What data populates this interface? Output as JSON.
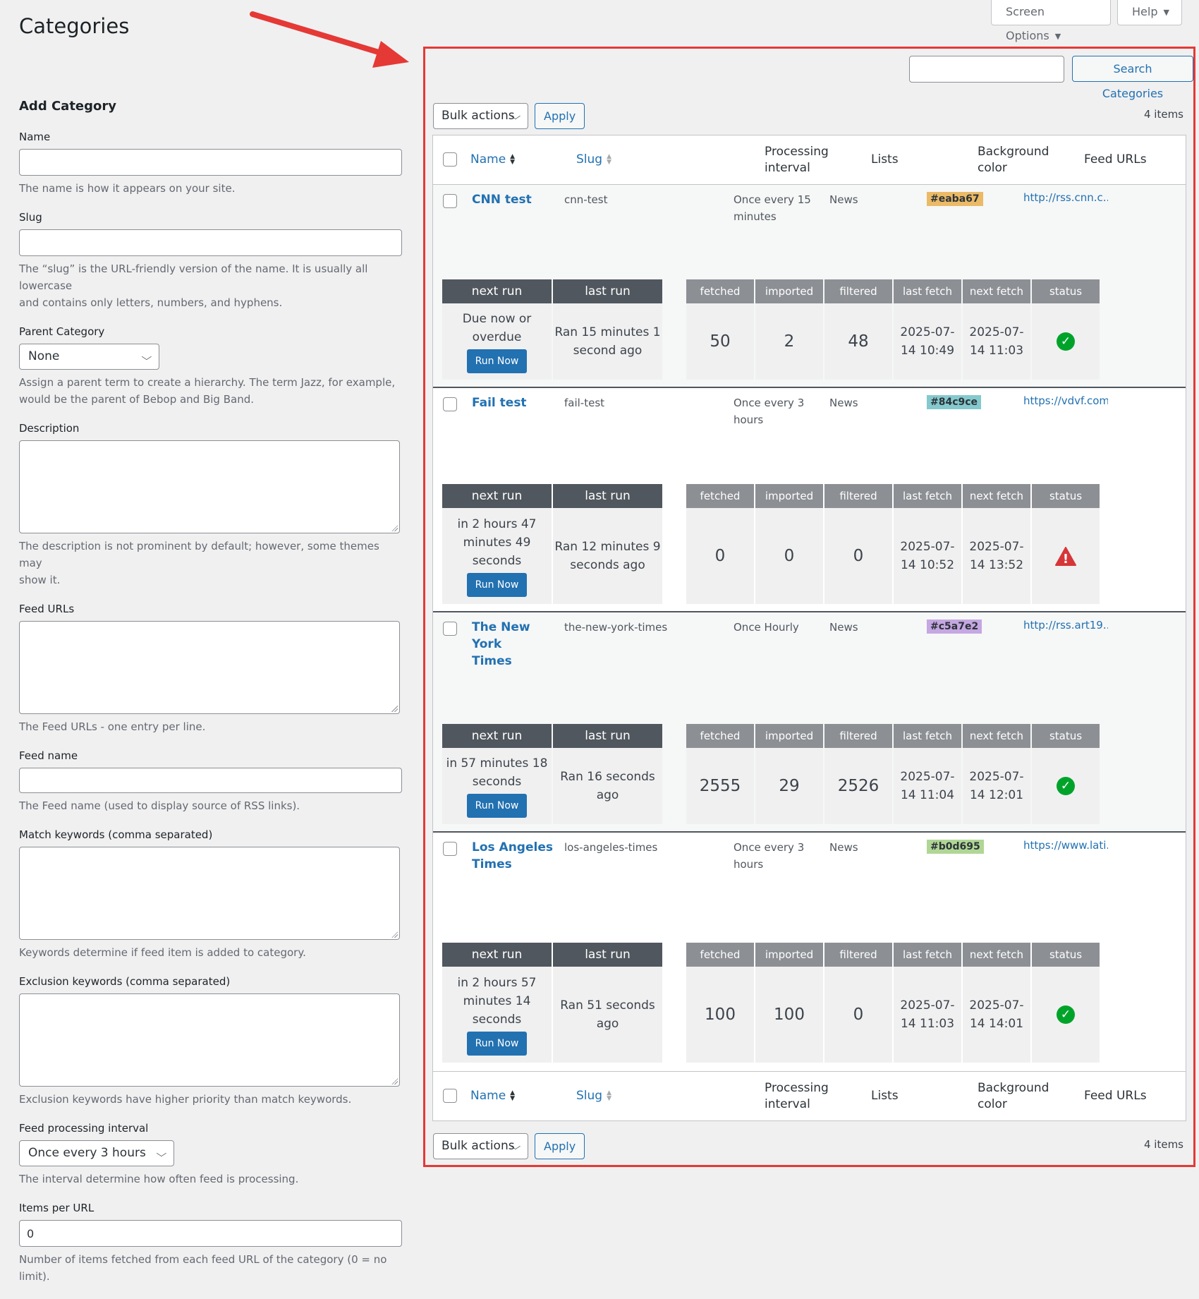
{
  "header": {
    "title": "Categories",
    "screen_options": "Screen Options",
    "help": "Help"
  },
  "form": {
    "heading": "Add Category",
    "name_label": "Name",
    "name_help": "The name is how it appears on your site.",
    "slug_label": "Slug",
    "slug_help_1": "The “slug” is the URL-friendly version of the name. It is usually all lowercase",
    "slug_help_2": "and contains only letters, numbers, and hyphens.",
    "parent_label": "Parent Category",
    "parent_value": "None",
    "parent_help_1": "Assign a parent term to create a hierarchy. The term Jazz, for example,",
    "parent_help_2": "would be the parent of Bebop and Big Band.",
    "description_label": "Description",
    "description_help_1": "The description is not prominent by default; however, some themes may",
    "description_help_2": "show it.",
    "feed_urls_label": "Feed URLs",
    "feed_urls_help": "The Feed URLs - one entry per line.",
    "feed_name_label": "Feed name",
    "feed_name_help": "The Feed name (used to display source of RSS links).",
    "match_label": "Match keywords (comma separated)",
    "match_help": "Keywords determine if feed item is added to category.",
    "exclusion_label": "Exclusion keywords (comma separated)",
    "exclusion_help": "Exclusion keywords have higher priority than match keywords.",
    "interval_label": "Feed processing interval",
    "interval_value": "Once every 3 hours",
    "interval_help": "The interval determine how often feed is processing.",
    "items_label": "Items per URL",
    "items_value": "0",
    "items_help": "Number of items fetched from each feed URL of the category (0 = no limit)."
  },
  "list": {
    "search_button": "Search Categories",
    "bulk_actions": "Bulk actions",
    "apply": "Apply",
    "items_count": "4 items",
    "columns": {
      "name": "Name",
      "slug": "Slug",
      "processing_1": "Processing",
      "processing_2": "interval",
      "lists": "Lists",
      "bg_1": "Background",
      "bg_2": "color",
      "feed_urls": "Feed URLs"
    },
    "mini_headers": {
      "next_run": "next run",
      "last_run": "last run",
      "fetched": "fetched",
      "imported": "imported",
      "filtered": "filtered",
      "last_fetch": "last fetch",
      "next_fetch": "next fetch",
      "status": "status"
    },
    "run_now": "Run Now",
    "rows": [
      {
        "name_1": "CNN test",
        "name_2": "",
        "slug": "cnn-test",
        "interval_1": "Once every 15",
        "interval_2": "minutes",
        "lists": "News",
        "color": "#eaba67",
        "feed_url": "http://rss.cnn.c...",
        "next_run_1": "Due now or",
        "next_run_2": "overdue",
        "next_run_3": "",
        "last_run_1": "Ran 15 minutes 1",
        "last_run_2": "second ago",
        "fetched": "50",
        "imported": "2",
        "filtered": "48",
        "last_fetch_1": "2025-07-",
        "last_fetch_2": "14 10:49",
        "next_fetch_1": "2025-07-",
        "next_fetch_2": "14 11:03",
        "status": "ok"
      },
      {
        "name_1": "Fail test",
        "name_2": "",
        "slug": "fail-test",
        "interval_1": "Once every 3",
        "interval_2": "hours",
        "lists": "News",
        "color": "#84c9ce",
        "feed_url": "https://vdvf.com/",
        "next_run_1": "in 2 hours 47",
        "next_run_2": "minutes 49",
        "next_run_3": "seconds",
        "last_run_1": "Ran 12 minutes 9",
        "last_run_2": "seconds ago",
        "fetched": "0",
        "imported": "0",
        "filtered": "0",
        "last_fetch_1": "2025-07-",
        "last_fetch_2": "14 10:52",
        "next_fetch_1": "2025-07-",
        "next_fetch_2": "14 13:52",
        "status": "error"
      },
      {
        "name_1": "The New York",
        "name_2": "Times",
        "slug": "the-new-york-times",
        "interval_1": "Once Hourly",
        "interval_2": "",
        "lists": "News",
        "color": "#c5a7e2",
        "feed_url": "http://rss.art19....",
        "next_run_1": "in 57 minutes 18",
        "next_run_2": "seconds",
        "next_run_3": "",
        "last_run_1": "Ran 16 seconds",
        "last_run_2": "ago",
        "fetched": "2555",
        "imported": "29",
        "filtered": "2526",
        "last_fetch_1": "2025-07-",
        "last_fetch_2": "14 11:04",
        "next_fetch_1": "2025-07-",
        "next_fetch_2": "14 12:01",
        "status": "ok"
      },
      {
        "name_1": "Los Angeles",
        "name_2": "Times",
        "slug": "los-angeles-times",
        "interval_1": "Once every 3",
        "interval_2": "hours",
        "lists": "News",
        "color": "#b0d695",
        "feed_url": "https://www.lati...",
        "next_run_1": "in 2 hours 57",
        "next_run_2": "minutes 14",
        "next_run_3": "seconds",
        "last_run_1": "Ran 51 seconds",
        "last_run_2": "ago",
        "fetched": "100",
        "imported": "100",
        "filtered": "0",
        "last_fetch_1": "2025-07-",
        "last_fetch_2": "14 11:03",
        "next_fetch_1": "2025-07-",
        "next_fetch_2": "14 14:01",
        "status": "ok"
      }
    ]
  }
}
